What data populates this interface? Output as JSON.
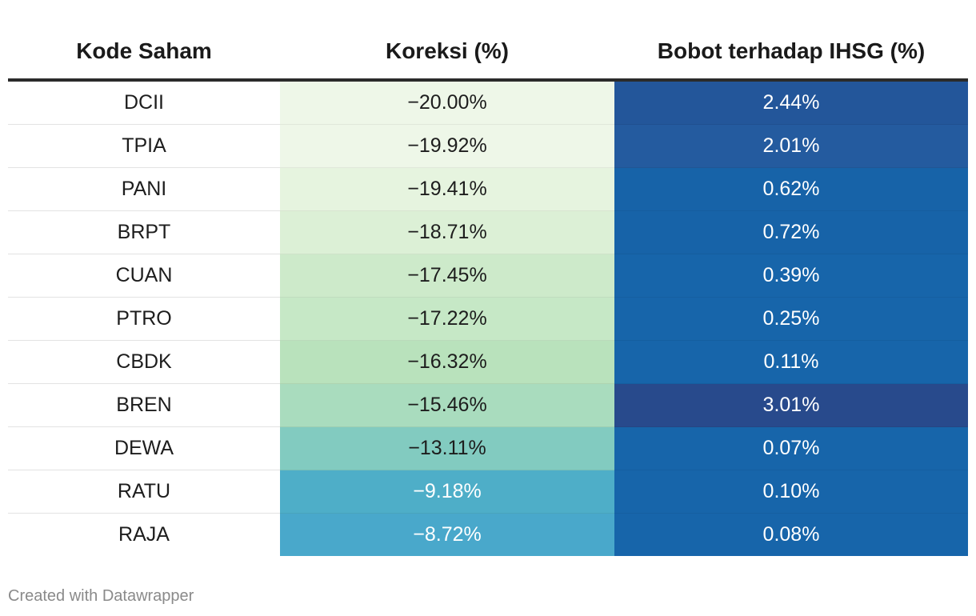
{
  "chart_data": {
    "type": "table",
    "columns": [
      "Kode Saham",
      "Koreksi (%)",
      "Bobot terhadap IHSG (%)"
    ],
    "rows": [
      {
        "code": "DCII",
        "koreksi": "−20.00%",
        "koreksi_value": -20.0,
        "bobot": "2.44%",
        "bobot_value": 2.44
      },
      {
        "code": "TPIA",
        "koreksi": "−19.92%",
        "koreksi_value": -19.92,
        "bobot": "2.01%",
        "bobot_value": 2.01
      },
      {
        "code": "PANI",
        "koreksi": "−19.41%",
        "koreksi_value": -19.41,
        "bobot": "0.62%",
        "bobot_value": 0.62
      },
      {
        "code": "BRPT",
        "koreksi": "−18.71%",
        "koreksi_value": -18.71,
        "bobot": "0.72%",
        "bobot_value": 0.72
      },
      {
        "code": "CUAN",
        "koreksi": "−17.45%",
        "koreksi_value": -17.45,
        "bobot": "0.39%",
        "bobot_value": 0.39
      },
      {
        "code": "PTRO",
        "koreksi": "−17.22%",
        "koreksi_value": -17.22,
        "bobot": "0.25%",
        "bobot_value": 0.25
      },
      {
        "code": "CBDK",
        "koreksi": "−16.32%",
        "koreksi_value": -16.32,
        "bobot": "0.11%",
        "bobot_value": 0.11
      },
      {
        "code": "BREN",
        "koreksi": "−15.46%",
        "koreksi_value": -15.46,
        "bobot": "3.01%",
        "bobot_value": 3.01
      },
      {
        "code": "DEWA",
        "koreksi": "−13.11%",
        "koreksi_value": -13.11,
        "bobot": "0.07%",
        "bobot_value": 0.07
      },
      {
        "code": "RATU",
        "koreksi": "−9.18%",
        "koreksi_value": -9.18,
        "bobot": "0.10%",
        "bobot_value": 0.1
      },
      {
        "code": "RAJA",
        "koreksi": "−8.72%",
        "koreksi_value": -8.72,
        "bobot": "0.08%",
        "bobot_value": 0.08
      }
    ],
    "koreksi_colors": [
      "#eef7e8",
      "#eef7e8",
      "#e6f4df",
      "#dcf0d6",
      "#cdeaca",
      "#c6e8c6",
      "#b9e2bc",
      "#a9dcbe",
      "#82cbc0",
      "#4eaec8",
      "#49a8cb"
    ],
    "koreksi_text_colors": [
      "#1d1d1d",
      "#1d1d1d",
      "#1d1d1d",
      "#1d1d1d",
      "#1d1d1d",
      "#1d1d1d",
      "#1d1d1d",
      "#1d1d1d",
      "#1d1d1d",
      "#ffffff",
      "#ffffff"
    ],
    "bobot_colors": [
      "#23569a",
      "#245b9f",
      "#1763a8",
      "#1763a8",
      "#1765aa",
      "#1765aa",
      "#1765aa",
      "#284a8c",
      "#1765aa",
      "#1765aa",
      "#1765aa"
    ],
    "bobot_text_color": "#ffffff"
  },
  "footer": "Created with Datawrapper"
}
